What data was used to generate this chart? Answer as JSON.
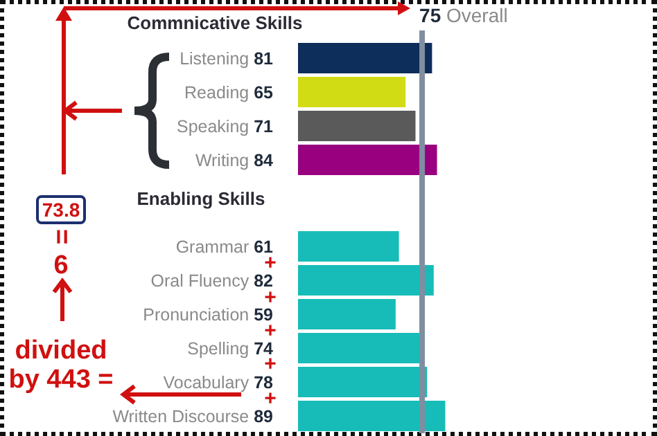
{
  "chart_data": [
    {
      "type": "bar",
      "orientation": "horizontal",
      "title": "Commnicative Skills",
      "categories": [
        "Listening",
        "Reading",
        "Speaking",
        "Writing"
      ],
      "values": [
        81,
        65,
        71,
        84
      ],
      "colors": [
        "#0d2d5a",
        "#d2dc14",
        "#5a5a5a",
        "#990080"
      ],
      "data_labels": true,
      "tick_labels": "y",
      "grid": false,
      "legend": false,
      "ref_lines": [
        {
          "axis": "x",
          "value": 75,
          "label": "75 Overall",
          "color": "#7f8ea0"
        }
      ],
      "annotations": [
        "73.8",
        "=",
        "6",
        "divided by 443 =",
        "+",
        "+",
        "+",
        "+",
        "+"
      ]
    },
    {
      "type": "bar",
      "orientation": "horizontal",
      "title": "Enabling Skills",
      "categories": [
        "Grammar",
        "Oral Fluency",
        "Pronunciation",
        "Spelling",
        "Vocabulary",
        "Written Discourse"
      ],
      "values": [
        61,
        82,
        59,
        74,
        78,
        89
      ],
      "color": "#17bcb8",
      "data_labels": true,
      "tick_labels": "y",
      "grid": false,
      "legend": false,
      "ref_lines": [
        {
          "axis": "x",
          "value": 75,
          "color": "#7f8ea0"
        }
      ]
    }
  ]
}
